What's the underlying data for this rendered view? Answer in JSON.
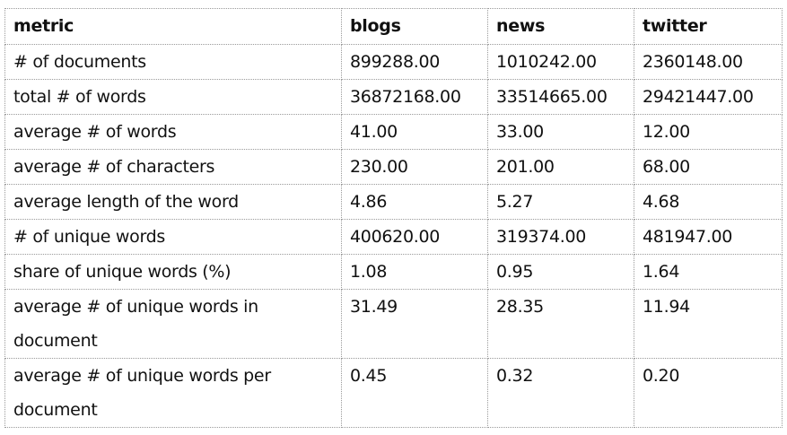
{
  "table": {
    "headers": [
      "metric",
      "blogs",
      "news",
      "twitter"
    ],
    "rows": [
      [
        "# of documents",
        "899288.00",
        "1010242.00",
        "2360148.00"
      ],
      [
        "total # of words",
        "36872168.00",
        "33514665.00",
        "29421447.00"
      ],
      [
        "average # of words",
        "41.00",
        "33.00",
        "12.00"
      ],
      [
        "average # of characters",
        "230.00",
        "201.00",
        "68.00"
      ],
      [
        "average length of the word",
        "4.86",
        "5.27",
        "4.68"
      ],
      [
        "# of unique words",
        "400620.00",
        "319374.00",
        "481947.00"
      ],
      [
        "share of unique words (%)",
        "1.08",
        "0.95",
        "1.64"
      ],
      [
        "average # of unique words in document",
        "31.49",
        "28.35",
        "11.94"
      ],
      [
        "average # of unique words per document",
        "0.45",
        "0.32",
        "0.20"
      ]
    ]
  }
}
